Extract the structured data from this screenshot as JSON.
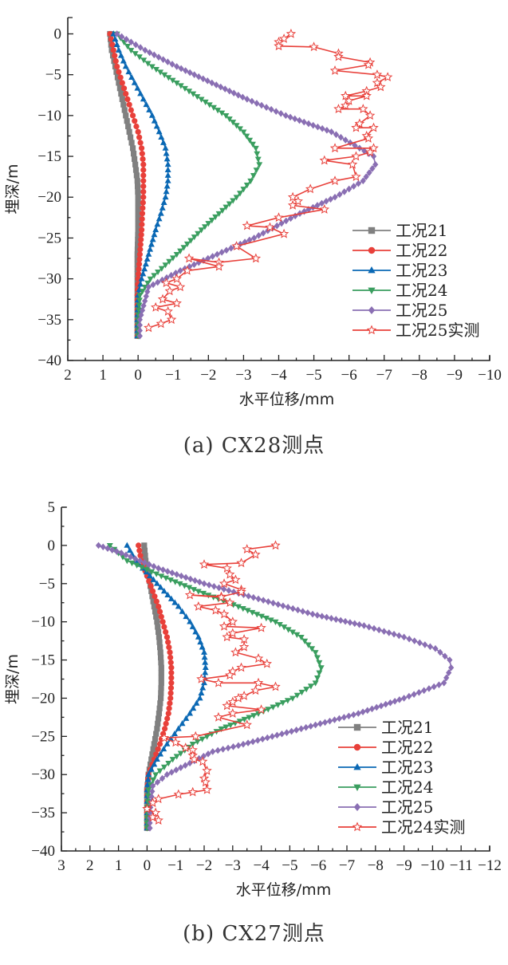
{
  "figure": {
    "captions": [
      "(a) CX28测点",
      "(b) CX27测点"
    ]
  },
  "chart_data": [
    {
      "type": "line",
      "title": "(a) CX28测点",
      "xlabel": "水平位移/mm",
      "ylabel": "埋深/m",
      "xlim": [
        2,
        -10
      ],
      "ylim": [
        -40,
        2
      ],
      "x_axis_reversed": true,
      "xticks": [
        2,
        1,
        0,
        -1,
        -2,
        -3,
        -4,
        -5,
        -6,
        -7,
        -8,
        -9,
        -10
      ],
      "xtick_labels": [
        "2",
        "1",
        "0",
        "−1",
        "−2",
        "−3",
        "−4",
        "−5",
        "−6",
        "−7",
        "−8",
        "−9",
        "−10"
      ],
      "yticks": [
        0,
        -5,
        -10,
        -15,
        -20,
        -25,
        -30,
        -35,
        -40
      ],
      "ytick_labels": [
        "0",
        "−5",
        "−10",
        "−15",
        "−20",
        "−25",
        "−30",
        "−35",
        "−40"
      ],
      "grid": false,
      "legend_position": "bottom-right",
      "series": [
        {
          "name": "工况21",
          "color": "#808080",
          "marker": "square",
          "x": [
            0.8,
            0.75,
            0.65,
            0.55,
            0.45,
            0.35,
            0.25,
            0.15,
            0.08,
            0.02,
            0.0,
            0.0,
            0.0,
            0.02,
            0.02,
            0.02,
            0.02,
            0.02
          ],
          "y": [
            0,
            -2,
            -4,
            -6,
            -8,
            -10,
            -12,
            -14,
            -16,
            -18,
            -20,
            -22,
            -24,
            -27,
            -30,
            -32,
            -35,
            -37
          ]
        },
        {
          "name": "工况22",
          "color": "#e8403a",
          "marker": "circle",
          "x": [
            0.8,
            0.7,
            0.6,
            0.45,
            0.3,
            0.15,
            0.0,
            -0.1,
            -0.15,
            -0.15,
            -0.15,
            -0.12,
            -0.1,
            -0.05,
            0.0,
            0.02,
            0.02,
            0.02
          ],
          "y": [
            0,
            -2,
            -4,
            -6,
            -8,
            -10,
            -12,
            -14,
            -16,
            -18,
            -20,
            -22,
            -24,
            -27,
            -30,
            -32,
            -35,
            -37
          ]
        },
        {
          "name": "工况23",
          "color": "#0a68b4",
          "marker": "triangle-up",
          "x": [
            0.7,
            0.55,
            0.35,
            0.1,
            -0.15,
            -0.4,
            -0.6,
            -0.78,
            -0.85,
            -0.85,
            -0.78,
            -0.65,
            -0.5,
            -0.3,
            -0.1,
            0.0,
            0.02,
            0.02
          ],
          "y": [
            0,
            -2,
            -4,
            -6,
            -8,
            -10,
            -12,
            -14,
            -16,
            -18,
            -20,
            -22,
            -24,
            -27,
            -30,
            -32,
            -35,
            -37
          ]
        },
        {
          "name": "工况24",
          "color": "#3a9e5f",
          "marker": "triangle-down",
          "x": [
            0.6,
            0.2,
            -0.4,
            -1.1,
            -1.8,
            -2.5,
            -3.0,
            -3.35,
            -3.45,
            -3.2,
            -2.8,
            -2.3,
            -1.8,
            -1.1,
            -0.35,
            -0.05,
            0.0,
            0.0
          ],
          "y": [
            0,
            -2,
            -4,
            -6,
            -8,
            -10,
            -12,
            -14,
            -16,
            -18,
            -20,
            -22,
            -24,
            -27,
            -30,
            -32,
            -35,
            -37
          ]
        },
        {
          "name": "工况25",
          "color": "#8a6fb3",
          "marker": "diamond",
          "x": [
            0.6,
            -0.2,
            -1.1,
            -2.1,
            -3.1,
            -4.2,
            -5.5,
            -6.3,
            -6.7,
            -6.75,
            -6.4,
            -5.6,
            -4.6,
            -3.3,
            -1.2,
            -0.3,
            -0.05,
            -0.05
          ],
          "y": [
            0,
            -2,
            -4,
            -6,
            -8,
            -10,
            -12,
            -14,
            -15,
            -16,
            -18,
            -20,
            -22,
            -25,
            -29,
            -31,
            -35,
            -37
          ]
        },
        {
          "name": "工况25实测",
          "color": "#e8403a",
          "marker": "star-open",
          "x": [
            -4.35,
            -4.15,
            -4.0,
            -4.0,
            -5.0,
            -5.7,
            -5.7,
            -6.6,
            -6.55,
            -5.6,
            -6.8,
            -7.1,
            -6.8,
            -6.9,
            -6.5,
            -5.9,
            -6.5,
            -6.0,
            -5.9,
            -5.7,
            -6.4,
            -6.6,
            -6.3,
            -6.2,
            -6.7,
            -6.5,
            -6.55,
            -5.6,
            -6.7,
            -6.6,
            -6.2,
            -5.3,
            -6.1,
            -6.2,
            -5.6,
            -4.9,
            -4.4,
            -4.55,
            -4.4,
            -5.3,
            -4.0,
            -3.1,
            -3.75,
            -4.15,
            -2.8,
            -3.35,
            -2.3,
            -1.45,
            -2.3,
            -1.4,
            -1.1,
            -0.8,
            -1.2,
            -0.9,
            -0.7,
            -1.1,
            -0.5,
            -0.85,
            -0.95,
            -0.65,
            -0.3
          ],
          "y": [
            0,
            -0.6,
            -1.0,
            -1.5,
            -1.6,
            -2.4,
            -2.8,
            -3.5,
            -3.8,
            -4.5,
            -5.0,
            -5.3,
            -6.0,
            -6.5,
            -7.0,
            -7.6,
            -7.6,
            -8.2,
            -8.8,
            -9.2,
            -9.2,
            -10.0,
            -11.0,
            -11.5,
            -11.5,
            -12.5,
            -12.8,
            -14.0,
            -14.0,
            -14.5,
            -15.0,
            -15.5,
            -16.0,
            -17.5,
            -18.0,
            -19.0,
            -20.0,
            -20.5,
            -21.0,
            -21.5,
            -22.5,
            -23.5,
            -23.7,
            -24.5,
            -26.0,
            -27.5,
            -28.0,
            -27.5,
            -28.5,
            -29.0,
            -30.0,
            -30.5,
            -31.0,
            -31.5,
            -32.5,
            -33.0,
            -33.5,
            -34.0,
            -35.0,
            -35.5,
            -36.0
          ]
        }
      ]
    },
    {
      "type": "line",
      "title": "(b) CX27测点",
      "xlabel": "水平位移/mm",
      "ylabel": "埋深/m",
      "xlim": [
        3,
        -12
      ],
      "ylim": [
        -40,
        5
      ],
      "x_axis_reversed": true,
      "xticks": [
        3,
        2,
        1,
        0,
        -1,
        -2,
        -3,
        -4,
        -5,
        -6,
        -7,
        -8,
        -9,
        -10,
        -11,
        -12
      ],
      "xtick_labels": [
        "3",
        "2",
        "1",
        "0",
        "−1",
        "−2",
        "−3",
        "−4",
        "−5",
        "−6",
        "−7",
        "−8",
        "−9",
        "−10",
        "−11",
        "−12"
      ],
      "yticks": [
        5,
        0,
        -5,
        -10,
        -15,
        -20,
        -25,
        -30,
        -35,
        -40
      ],
      "ytick_labels": [
        "5",
        "0",
        "−5",
        "−10",
        "−15",
        "−20",
        "−25",
        "−30",
        "−35",
        "−40"
      ],
      "grid": false,
      "legend_position": "bottom-right",
      "series": [
        {
          "name": "工况21",
          "color": "#808080",
          "marker": "square",
          "x": [
            0.1,
            0.05,
            -0.05,
            -0.15,
            -0.25,
            -0.35,
            -0.42,
            -0.47,
            -0.5,
            -0.5,
            -0.48,
            -0.42,
            -0.35,
            -0.25,
            -0.15,
            -0.05,
            0.0,
            0.0,
            0.0
          ],
          "y": [
            0,
            -2,
            -4,
            -6,
            -8,
            -10,
            -12,
            -14,
            -16,
            -18,
            -20,
            -22,
            -24,
            -26,
            -28,
            -30,
            -32,
            -35,
            -37
          ]
        },
        {
          "name": "工况22",
          "color": "#e8403a",
          "marker": "circle",
          "x": [
            0.3,
            0.2,
            0.0,
            -0.2,
            -0.4,
            -0.55,
            -0.7,
            -0.8,
            -0.85,
            -0.85,
            -0.82,
            -0.75,
            -0.62,
            -0.45,
            -0.25,
            -0.05,
            0.0,
            0.0,
            0.0
          ],
          "y": [
            0,
            -2,
            -4,
            -6,
            -8,
            -10,
            -12,
            -14,
            -16,
            -18,
            -20,
            -22,
            -24,
            -26,
            -28,
            -30,
            -32,
            -35,
            -37
          ]
        },
        {
          "name": "工况23",
          "color": "#0a68b4",
          "marker": "triangle-up",
          "x": [
            0.7,
            0.4,
            -0.1,
            -0.6,
            -1.1,
            -1.5,
            -1.8,
            -2.0,
            -2.05,
            -2.0,
            -1.85,
            -1.5,
            -1.1,
            -0.7,
            -0.35,
            -0.05,
            0.0,
            0.0,
            0.0
          ],
          "y": [
            0,
            -2,
            -4,
            -6,
            -8,
            -10,
            -12,
            -14,
            -16,
            -18,
            -20,
            -22,
            -24,
            -26,
            -28,
            -30,
            -32,
            -35,
            -37
          ]
        },
        {
          "name": "工况24",
          "color": "#3a9e5f",
          "marker": "triangle-down",
          "x": [
            1.3,
            0.7,
            -0.5,
            -1.8,
            -3.2,
            -4.5,
            -5.4,
            -5.9,
            -6.1,
            -5.9,
            -5.1,
            -3.9,
            -2.6,
            -1.6,
            -0.9,
            -0.3,
            -0.05,
            0.0,
            0.0
          ],
          "y": [
            0,
            -2,
            -4,
            -6,
            -8,
            -10,
            -12,
            -14,
            -16,
            -18,
            -20,
            -22,
            -24,
            -26,
            -28,
            -30,
            -32,
            -35,
            -37
          ]
        },
        {
          "name": "工况25",
          "color": "#8a6fb3",
          "marker": "diamond",
          "x": [
            1.7,
            0.9,
            -0.4,
            -2.0,
            -3.9,
            -5.8,
            -7.6,
            -9.0,
            -10.1,
            -10.6,
            -10.65,
            -10.4,
            -9.0,
            -7.4,
            -5.4,
            -3.2,
            -2.3,
            -1.5,
            -0.7,
            -0.2,
            -0.1,
            -0.1
          ],
          "y": [
            0,
            -1,
            -3,
            -5,
            -7,
            -9,
            -10.5,
            -12,
            -13.5,
            -15,
            -16,
            -18,
            -20,
            -22,
            -24,
            -26.2,
            -27,
            -28.5,
            -30,
            -31.5,
            -35,
            -37
          ]
        },
        {
          "name": "工况24实测",
          "color": "#e8403a",
          "marker": "star-open",
          "x": [
            -4.5,
            -3.5,
            -3.8,
            -3.3,
            -2.0,
            -2.8,
            -2.9,
            -3.1,
            -2.7,
            -3.3,
            -3.3,
            -2.6,
            -1.5,
            -2.6,
            -2.9,
            -1.8,
            -2.4,
            -2.7,
            -3.0,
            -2.7,
            -4.0,
            -3.0,
            -2.8,
            -3.4,
            -3.4,
            -3.1,
            -3.9,
            -4.2,
            -3.3,
            -3.0,
            -2.9,
            -1.9,
            -2.5,
            -3.9,
            -4.5,
            -3.8,
            -3.4,
            -3.2,
            -3.0,
            -2.8,
            -4.0,
            -3.0,
            -2.5,
            -3.5,
            -1.7,
            -0.6,
            -1.0,
            -1.35,
            -1.6,
            -1.6,
            -1.65,
            -1.95,
            -2.1,
            -2.0,
            -2.05,
            -2.1,
            -1.6,
            -1.1,
            -0.4,
            -0.2,
            0.0,
            -0.3,
            -0.2,
            -0.4
          ],
          "y": [
            0,
            -0.5,
            -1.2,
            -2.3,
            -2.5,
            -3.0,
            -3.8,
            -4.5,
            -5.0,
            -5.8,
            -6.1,
            -6.7,
            -6.5,
            -6.8,
            -7.5,
            -8.0,
            -8.5,
            -9.0,
            -10.0,
            -10.6,
            -10.8,
            -11.5,
            -12.0,
            -12.3,
            -13.3,
            -14.0,
            -14.8,
            -15.5,
            -16.0,
            -16.5,
            -17.0,
            -17.5,
            -18.0,
            -18.0,
            -18.5,
            -19.0,
            -19.7,
            -20.0,
            -20.5,
            -21.0,
            -21.5,
            -22.0,
            -22.5,
            -23.5,
            -25.0,
            -25.2,
            -25.8,
            -26.5,
            -26.8,
            -27.5,
            -28.0,
            -28.3,
            -29.5,
            -30.5,
            -31.0,
            -32.0,
            -32.3,
            -32.6,
            -33.2,
            -33.7,
            -34.5,
            -35.0,
            -35.6,
            -36.0
          ]
        }
      ]
    }
  ]
}
